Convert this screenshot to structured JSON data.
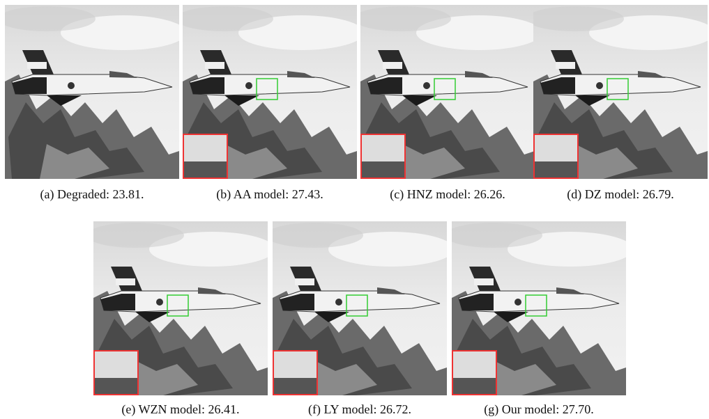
{
  "figure": {
    "panels": [
      {
        "caption": "(a) Degraded: 23.81."
      },
      {
        "caption": "(b) AA model: 27.43."
      },
      {
        "caption": "(c) HNZ model: 26.26."
      },
      {
        "caption": "(d) DZ model: 26.79."
      },
      {
        "caption": "(e) WZN model: 26.41."
      },
      {
        "caption": "(f) LY model: 26.72."
      },
      {
        "caption": "(g) Our model: 27.70."
      }
    ]
  }
}
